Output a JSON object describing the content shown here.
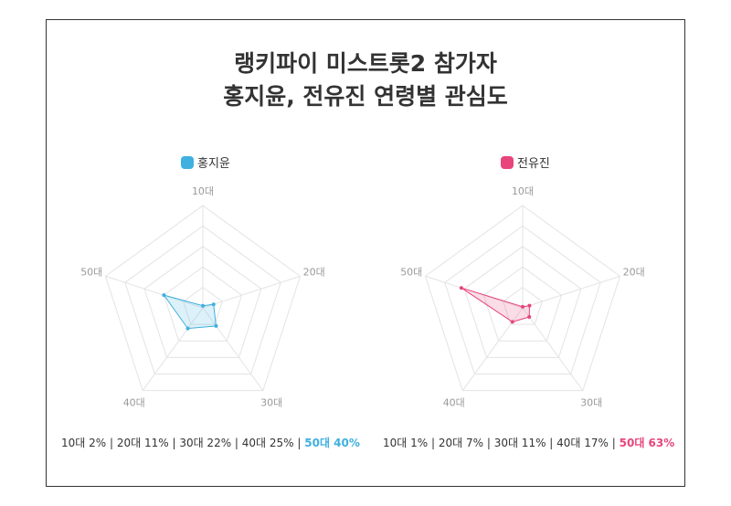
{
  "chart_data": [
    {
      "type": "radar",
      "title": "랭키파이 미스트롯2 참가자 홍지윤, 전유진 연령별 관심도",
      "series_name": "홍지윤",
      "color": "#3fb0e0",
      "categories": [
        "10대",
        "20대",
        "30대",
        "40대",
        "50대"
      ],
      "values": [
        2,
        11,
        22,
        25,
        40
      ],
      "rlim": [
        0,
        100
      ],
      "rings": 5,
      "summary": [
        "10대 2%",
        "20대 11%",
        "30대 22%",
        "40대 25%",
        "50대 40%"
      ]
    },
    {
      "type": "radar",
      "series_name": "전유진",
      "color": "#e8457c",
      "categories": [
        "10대",
        "20대",
        "30대",
        "40대",
        "50대"
      ],
      "values": [
        1,
        7,
        11,
        17,
        63
      ],
      "rlim": [
        0,
        100
      ],
      "rings": 5,
      "summary": [
        "10대 1%",
        "20대 7%",
        "30대 11%",
        "40대 17%",
        "50대 63%"
      ]
    }
  ],
  "title_line1": "랭키파이 미스트롯2 참가자",
  "title_line2": "홍지윤, 전유진 연령별 관심도",
  "separator": "|"
}
